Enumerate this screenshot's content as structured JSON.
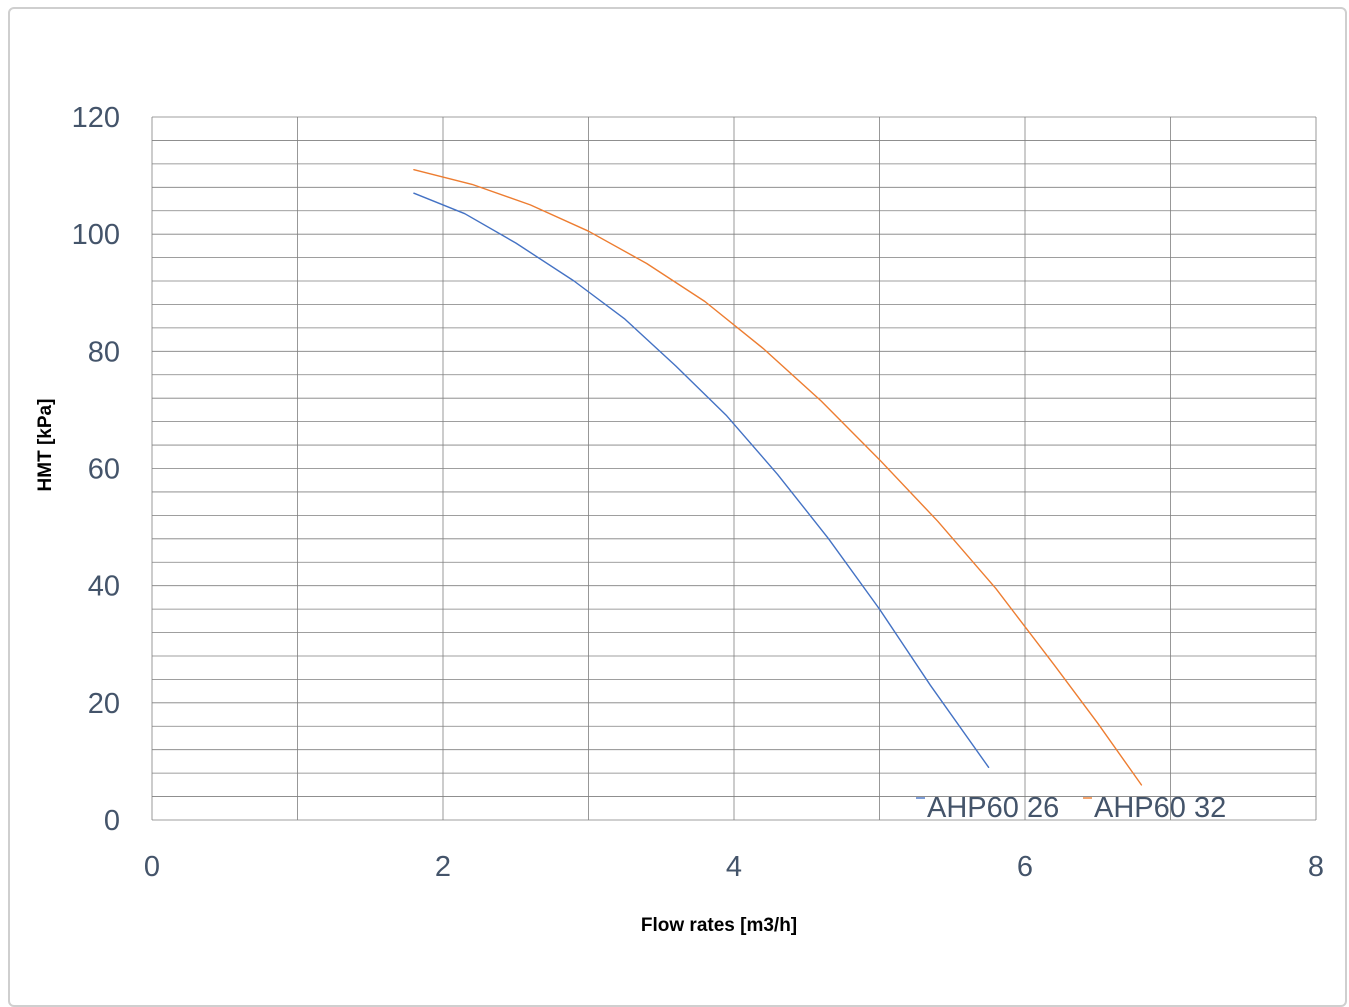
{
  "chart_data": {
    "type": "line",
    "title": "",
    "xlabel": "Flow rates [m3/h]",
    "ylabel": "HMT [kPa]",
    "xlim": [
      0,
      8
    ],
    "ylim": [
      0,
      120
    ],
    "xticks": [
      0,
      2,
      4,
      6,
      8
    ],
    "yticks": [
      0,
      20,
      40,
      60,
      80,
      100,
      120
    ],
    "grid": true,
    "legend_position": "bottom-right",
    "series": [
      {
        "name": "AHP60 26",
        "color": "#4472c4",
        "x": [
          1.8,
          2.15,
          2.5,
          2.9,
          3.25,
          3.6,
          3.95,
          4.3,
          4.65,
          5.0,
          5.35,
          5.75
        ],
        "y": [
          107,
          103.5,
          98.5,
          92,
          85.5,
          77.5,
          69,
          59,
          48,
          36,
          23,
          9
        ]
      },
      {
        "name": "AHP60 32",
        "color": "#ed7d31",
        "x": [
          1.8,
          2.2,
          2.6,
          3.0,
          3.4,
          3.8,
          4.2,
          4.6,
          5.0,
          5.4,
          5.8,
          6.2,
          6.5,
          6.8
        ],
        "y": [
          111,
          108.5,
          105,
          100.5,
          95,
          88.5,
          80.5,
          71.5,
          61.5,
          51,
          39.5,
          26.5,
          16.5,
          6
        ]
      }
    ]
  }
}
